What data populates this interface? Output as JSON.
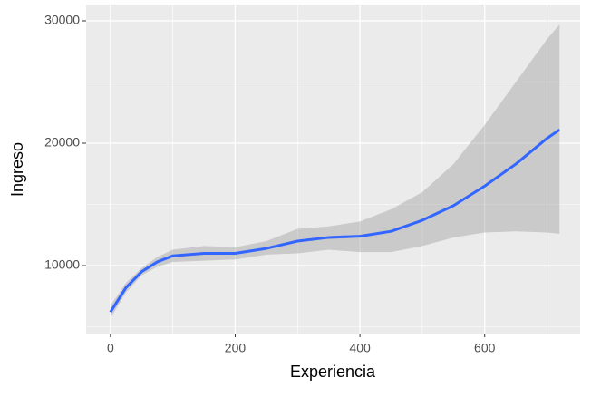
{
  "chart_data": {
    "type": "smooth",
    "x_label": "Experiencia",
    "y_label": "Ingreso",
    "x": [
      0,
      25,
      50,
      75,
      100,
      150,
      200,
      250,
      300,
      350,
      400,
      450,
      500,
      550,
      600,
      650,
      700,
      720
    ],
    "series": [
      {
        "color": "#3366FF",
        "values": [
          6200,
          8200,
          9500,
          10300,
          10800,
          11000,
          11000,
          11400,
          12000,
          12300,
          12400,
          12800,
          13700,
          14900,
          16500,
          18300,
          20400,
          21100
        ],
        "lower": [
          5700,
          7800,
          9200,
          9900,
          10300,
          10400,
          10500,
          10900,
          11000,
          11300,
          11100,
          11100,
          11600,
          12300,
          12700,
          12800,
          12700,
          12600
        ],
        "upper": [
          6700,
          8600,
          9800,
          10700,
          11300,
          11600,
          11500,
          12000,
          13000,
          13200,
          13600,
          14600,
          16000,
          18300,
          21500,
          25000,
          28500,
          29700
        ],
        "band_color": "#999999"
      }
    ],
    "xlim": [
      -39,
      753
    ],
    "ylim": [
      4444,
      31333
    ],
    "xticks": [
      0,
      200,
      400,
      600
    ],
    "yticks": [
      10000,
      20000,
      30000
    ],
    "x_minor_breaks": [
      100,
      300,
      500,
      700
    ],
    "y_minor_breaks": [
      5000,
      15000,
      25000
    ],
    "grid": true
  }
}
